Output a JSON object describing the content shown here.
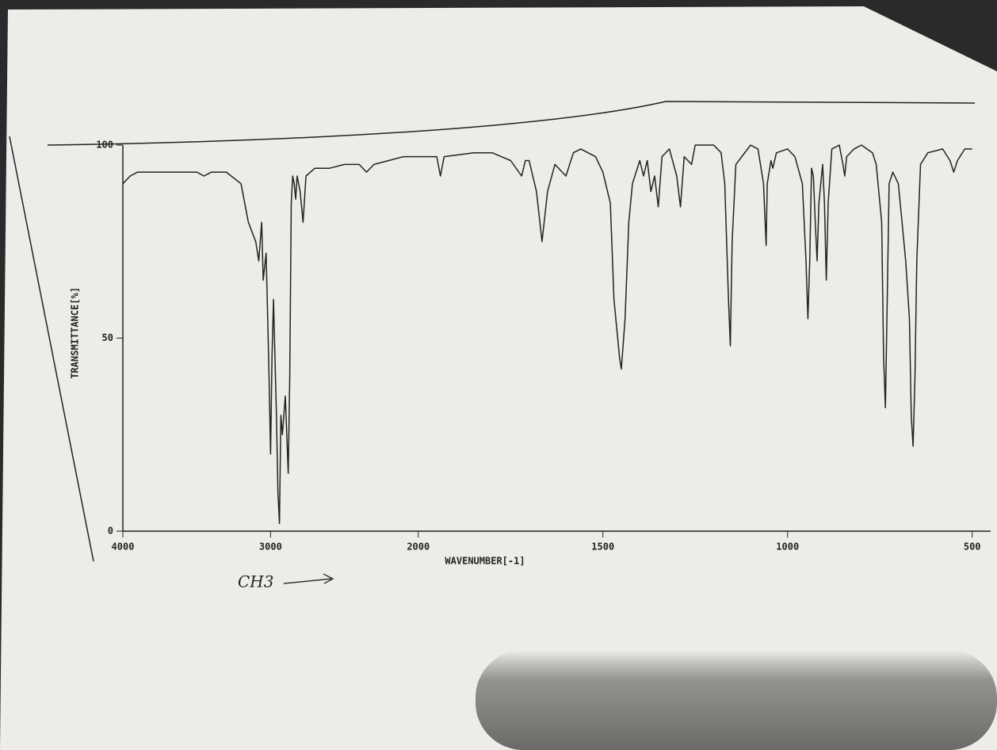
{
  "chart_data": {
    "type": "line",
    "y_label": "TRANSMITTANCE[%]",
    "x_label": "WAVENUMBER[-1]",
    "annotation": "CH3",
    "xlim": [
      4000,
      450
    ],
    "x_scale_break": 2000,
    "xticks": [
      4000,
      3000,
      2000,
      1500,
      1000,
      500
    ],
    "ylim": [
      0,
      100
    ],
    "yticks": [
      0,
      50,
      100
    ],
    "color": "#222222",
    "x": [
      4000,
      3950,
      3900,
      3700,
      3500,
      3450,
      3400,
      3300,
      3200,
      3150,
      3100,
      3080,
      3060,
      3050,
      3030,
      3010,
      3000,
      2990,
      2980,
      2960,
      2950,
      2940,
      2930,
      2920,
      2900,
      2880,
      2870,
      2860,
      2850,
      2840,
      2830,
      2820,
      2800,
      2780,
      2760,
      2700,
      2600,
      2500,
      2400,
      2350,
      2300,
      2200,
      2100,
      2000,
      1950,
      1940,
      1930,
      1850,
      1800,
      1750,
      1720,
      1710,
      1700,
      1680,
      1665,
      1650,
      1630,
      1600,
      1580,
      1560,
      1520,
      1500,
      1480,
      1470,
      1460,
      1455,
      1450,
      1440,
      1430,
      1420,
      1400,
      1390,
      1380,
      1370,
      1360,
      1350,
      1340,
      1320,
      1300,
      1290,
      1280,
      1260,
      1250,
      1200,
      1180,
      1170,
      1160,
      1155,
      1150,
      1140,
      1100,
      1080,
      1065,
      1058,
      1055,
      1045,
      1040,
      1030,
      1000,
      980,
      960,
      950,
      945,
      940,
      935,
      930,
      925,
      920,
      915,
      905,
      900,
      895,
      890,
      880,
      860,
      850,
      845,
      840,
      820,
      800,
      770,
      760,
      745,
      740,
      735,
      730,
      725,
      715,
      700,
      690,
      680,
      670,
      665,
      660,
      655,
      650,
      640,
      620,
      580,
      560,
      550,
      540,
      520,
      500
    ],
    "values": [
      90,
      92,
      93,
      93,
      93,
      92,
      93,
      93,
      90,
      80,
      75,
      70,
      80,
      65,
      72,
      40,
      20,
      45,
      60,
      30,
      10,
      2,
      30,
      25,
      35,
      15,
      40,
      85,
      92,
      90,
      86,
      92,
      88,
      80,
      92,
      94,
      94,
      95,
      95,
      93,
      95,
      96,
      97,
      97,
      97,
      92,
      97,
      98,
      98,
      96,
      92,
      96,
      96,
      88,
      75,
      88,
      95,
      92,
      98,
      99,
      97,
      93,
      85,
      60,
      50,
      45,
      42,
      55,
      80,
      90,
      96,
      92,
      96,
      88,
      92,
      84,
      97,
      99,
      92,
      84,
      97,
      95,
      100,
      100,
      98,
      90,
      60,
      48,
      75,
      95,
      100,
      99,
      90,
      74,
      90,
      96,
      94,
      98,
      99,
      97,
      90,
      70,
      55,
      70,
      94,
      92,
      80,
      70,
      85,
      95,
      85,
      65,
      85,
      99,
      100,
      95,
      92,
      97,
      99,
      100,
      98,
      95,
      80,
      45,
      32,
      60,
      90,
      93,
      90,
      80,
      70,
      55,
      30,
      22,
      40,
      70,
      95,
      98,
      99,
      96,
      93,
      96,
      99,
      99
    ]
  }
}
